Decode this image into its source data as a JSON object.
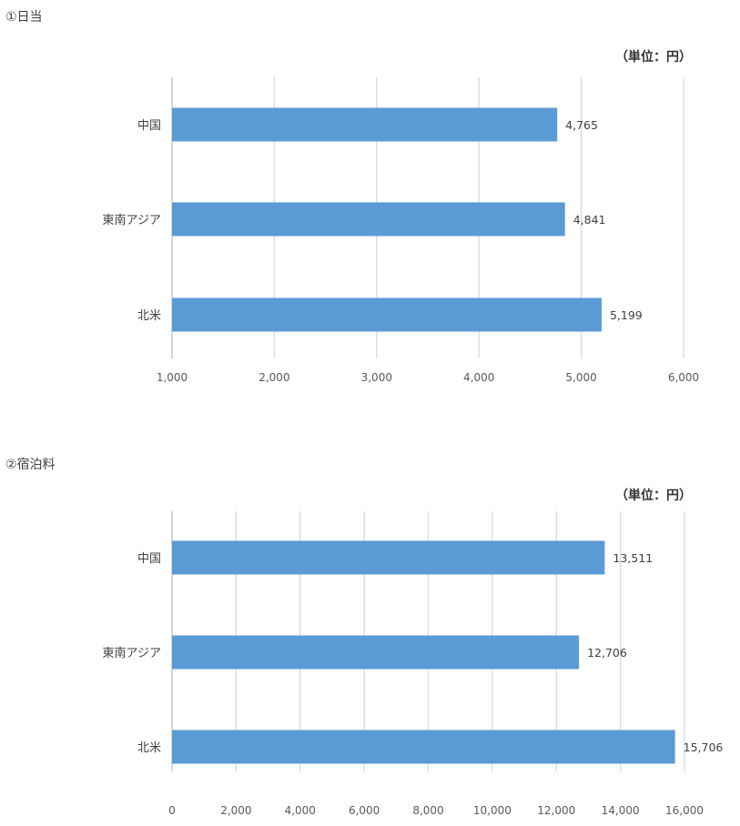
{
  "charts": [
    {
      "section_title": "①日当",
      "unit_label": "（単位：円）"
    },
    {
      "section_title": "②宿泊料",
      "unit_label": "（単位：円）"
    }
  ],
  "chart_data": [
    {
      "type": "bar",
      "orientation": "horizontal",
      "title": "①日当",
      "unit": "（単位：円）",
      "categories": [
        "中国",
        "東南アジア",
        "北米"
      ],
      "values": [
        4765,
        4841,
        5199
      ],
      "value_labels": [
        "4,765",
        "4,841",
        "5,199"
      ],
      "xlim": [
        1000,
        6000
      ],
      "ticks": [
        1000,
        2000,
        3000,
        4000,
        5000,
        6000
      ],
      "tick_labels": [
        "1,000",
        "2,000",
        "3,000",
        "4,000",
        "5,000",
        "6,000"
      ],
      "grid": true,
      "color": "#5b9bd5"
    },
    {
      "type": "bar",
      "orientation": "horizontal",
      "title": "②宿泊料",
      "unit": "（単位：円）",
      "categories": [
        "中国",
        "東南アジア",
        "北米"
      ],
      "values": [
        13511,
        12706,
        15706
      ],
      "value_labels": [
        "13,511",
        "12,706",
        "15,706"
      ],
      "xlim": [
        0,
        16000
      ],
      "ticks": [
        0,
        2000,
        4000,
        6000,
        8000,
        10000,
        12000,
        14000,
        16000
      ],
      "tick_labels": [
        "0",
        "2,000",
        "4,000",
        "6,000",
        "8,000",
        "10,000",
        "12,000",
        "14,000",
        "16,000"
      ],
      "grid": true,
      "color": "#5b9bd5"
    }
  ]
}
